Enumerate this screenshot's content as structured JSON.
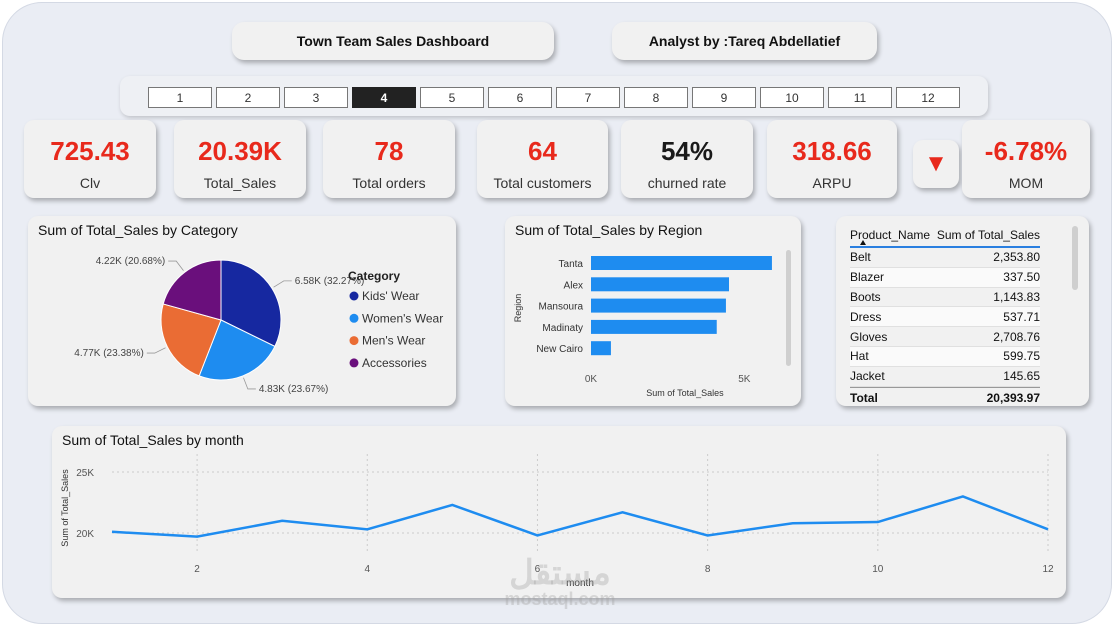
{
  "header": {
    "dashboard_title": "Town Team Sales Dashboard",
    "analyst": "Analyst by :Tareq Abdellatief"
  },
  "pages": [
    "1",
    "2",
    "3",
    "4",
    "5",
    "6",
    "7",
    "8",
    "9",
    "10",
    "11",
    "12"
  ],
  "active_page": "4",
  "kpis": [
    {
      "value": "725.43",
      "label": "Clv"
    },
    {
      "value": "20.39K",
      "label": "Total_Sales"
    },
    {
      "value": "78",
      "label": "Total orders"
    },
    {
      "value": "64",
      "label": "Total customers"
    },
    {
      "value": "54%",
      "label": "churned rate"
    },
    {
      "value": "318.66",
      "label": "ARPU"
    },
    {
      "value": "-6.78%",
      "label": "MOM"
    }
  ],
  "mom_indicator": "▼",
  "colors": {
    "accent_red": "#e8291c",
    "bar_blue": "#1e8cf0",
    "kids": "#1628a0",
    "women": "#1e8cf0",
    "men": "#ea6c34",
    "accessories": "#6a0f7c"
  },
  "chart_data": [
    {
      "type": "pie",
      "title": "Sum of Total_Sales by Category",
      "legend_title": "Category",
      "legend_position": "right",
      "categories": [
        "Kids' Wear",
        "Women's Wear",
        "Men's Wear",
        "Accessories"
      ],
      "values": [
        6580,
        4830,
        4770,
        4220
      ],
      "percents": [
        32.27,
        23.67,
        23.38,
        20.68
      ],
      "data_labels": [
        "6.58K (32.27%)",
        "4.83K (23.67%)",
        "4.77K (23.38%)",
        "4.22K (20.68%)"
      ],
      "colors": [
        "#1628a0",
        "#1e8cf0",
        "#ea6c34",
        "#6a0f7c"
      ]
    },
    {
      "type": "bar",
      "orientation": "horizontal",
      "title": "Sum of Total_Sales by Region",
      "categories": [
        "Tanta",
        "Alex",
        "Mansoura",
        "Madinaty",
        "New Cairo"
      ],
      "values": [
        5900,
        4500,
        4400,
        4100,
        650
      ],
      "xlabel": "Sum of Total_Sales",
      "ylabel": "Region",
      "xlim": [
        0,
        6000
      ],
      "xticks": [
        0,
        5000
      ],
      "xtick_labels": [
        "0K",
        "5K"
      ]
    },
    {
      "type": "table",
      "columns": [
        "Product_Name",
        "Sum of Total_Sales"
      ],
      "rows": [
        [
          "Belt",
          "2,353.80"
        ],
        [
          "Blazer",
          "337.50"
        ],
        [
          "Boots",
          "1,143.83"
        ],
        [
          "Dress",
          "537.71"
        ],
        [
          "Gloves",
          "2,708.76"
        ],
        [
          "Hat",
          "599.75"
        ],
        [
          "Jacket",
          "145.65"
        ]
      ],
      "total": [
        "Total",
        "20,393.97"
      ]
    },
    {
      "type": "line",
      "title": "Sum of Total_Sales by month",
      "x": [
        1,
        2,
        3,
        4,
        5,
        6,
        7,
        8,
        9,
        10,
        11,
        12
      ],
      "y": [
        20100,
        19700,
        21000,
        20300,
        22300,
        19800,
        21700,
        19800,
        20800,
        20900,
        23000,
        20300
      ],
      "xlabel": "month",
      "ylabel": "Sum of Total_Sales",
      "xlim": [
        1,
        12
      ],
      "ylim": [
        19000,
        25000
      ],
      "xticks": [
        2,
        4,
        6,
        8,
        10,
        12
      ],
      "yticks": [
        20000,
        25000
      ],
      "ytick_labels": [
        "20K",
        "25K"
      ],
      "grid": true
    }
  ],
  "watermark": {
    "arabic": "مستقل",
    "latin": "mostaql.com"
  }
}
